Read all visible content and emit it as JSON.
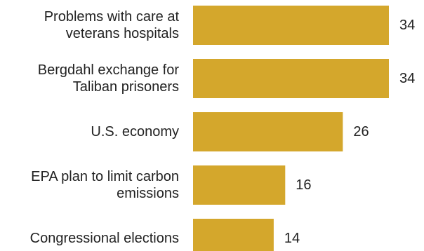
{
  "chart_data": {
    "type": "bar",
    "orientation": "horizontal",
    "categories": [
      [
        "Problems with care at",
        "veterans hospitals"
      ],
      [
        "Bergdahl exchange for",
        "Taliban prisoners"
      ],
      [
        "U.S. economy"
      ],
      [
        "EPA plan to limit carbon",
        "emissions"
      ],
      [
        "Congressional elections"
      ]
    ],
    "values": [
      34,
      34,
      26,
      16,
      14
    ],
    "xlim": [
      0,
      34
    ],
    "grid": false,
    "legend": false,
    "bar_color": "#d4a72c",
    "text_color": "#222222"
  }
}
